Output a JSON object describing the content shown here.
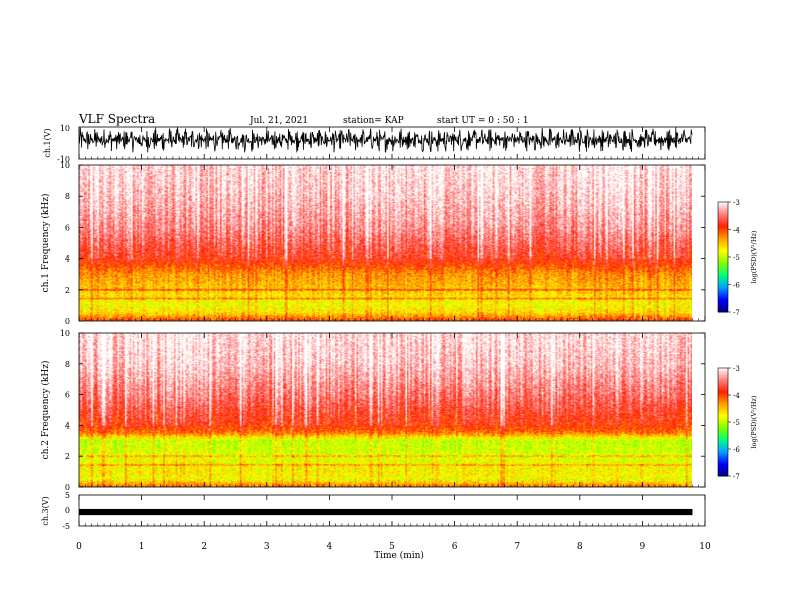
{
  "header": {
    "title": "VLF Spectra",
    "date": "Jul. 21, 2021",
    "station": "station= KAP",
    "start": "start UT =  0 : 50 : 1"
  },
  "colors": {
    "scale": [
      "#000080",
      "#0000ff",
      "#00a0ff",
      "#00ff80",
      "#80ff00",
      "#ffff00",
      "#ffa000",
      "#ff2000",
      "#ff8080",
      "#ffffff"
    ]
  },
  "chart_data": [
    {
      "type": "line",
      "panel": "ch1-waveform",
      "ylabel": "ch.1(V)",
      "ylim": [
        -10,
        10
      ],
      "yticks": [
        "10",
        "-10"
      ],
      "xlim": [
        0,
        10
      ],
      "note_values": {
        "typical_range_V": [
          -6,
          10
        ],
        "shape": "dense noisy oscillation"
      }
    },
    {
      "type": "heatmap",
      "panel": "ch1-spectrogram",
      "ylabel": "ch.1 Frequency (kHz)",
      "ylim": [
        0,
        10
      ],
      "yticks": [
        "0",
        "2",
        "4",
        "6",
        "8",
        "10"
      ],
      "xlim": [
        0,
        10
      ],
      "frequency_profile_logPSD": [
        [
          0,
          -4.0
        ],
        [
          0.5,
          -4.6
        ],
        [
          1.0,
          -4.8
        ],
        [
          2.0,
          -4.5
        ],
        [
          3.0,
          -4.3
        ],
        [
          4.0,
          -3.8
        ],
        [
          5.0,
          -3.6
        ],
        [
          6.0,
          -3.4
        ],
        [
          8.0,
          -3.2
        ],
        [
          10.0,
          -3.1
        ]
      ],
      "colorbar": {
        "label": "log(PSD)(V²/Hz)",
        "range": [
          -7,
          -3
        ],
        "ticks": [
          "-3",
          "-4",
          "-5",
          "-6",
          "-7"
        ]
      }
    },
    {
      "type": "heatmap",
      "panel": "ch2-spectrogram",
      "ylabel": "ch.2 Frequency (kHz)",
      "ylim": [
        0,
        10
      ],
      "yticks": [
        "0",
        "2",
        "4",
        "6",
        "8",
        "10"
      ],
      "xlim": [
        0,
        10
      ],
      "frequency_profile_logPSD": [
        [
          0,
          -4.2
        ],
        [
          0.5,
          -4.8
        ],
        [
          1.0,
          -4.7
        ],
        [
          2.0,
          -4.9
        ],
        [
          3.0,
          -5.0
        ],
        [
          3.5,
          -4.2
        ],
        [
          4.0,
          -3.9
        ],
        [
          6.0,
          -3.5
        ],
        [
          8.0,
          -3.2
        ],
        [
          10.0,
          -3.1
        ]
      ],
      "colorbar": {
        "label": "log(PSD)(V²/Hz)",
        "range": [
          -7,
          -3
        ],
        "ticks": [
          "-3",
          "-4",
          "-5",
          "-6",
          "-7"
        ]
      }
    },
    {
      "type": "line",
      "panel": "ch3-waveform",
      "ylabel": "ch.3(V)",
      "ylim": [
        -5,
        5
      ],
      "yticks": [
        "5",
        "0",
        "-5"
      ],
      "xlim": [
        0,
        10
      ],
      "note_values": {
        "typical_range_V": [
          -1.5,
          0.5
        ],
        "shape": "narrow dense band"
      }
    }
  ],
  "xaxis": {
    "label": "Time (min)",
    "ticks": [
      "0",
      "1",
      "2",
      "3",
      "4",
      "5",
      "6",
      "7",
      "8",
      "9",
      "10"
    ]
  }
}
